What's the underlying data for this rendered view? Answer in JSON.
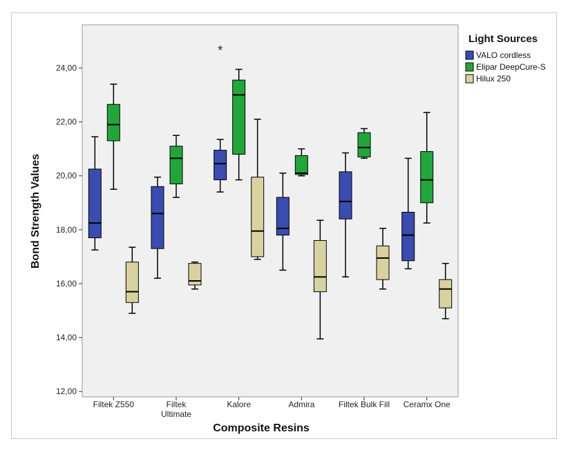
{
  "chart_data": {
    "type": "boxplot",
    "xlabel": "Composite Resins",
    "ylabel": "Bond Strength Values",
    "ylim": [
      11.8,
      25.6
    ],
    "yticks": [
      "12,00",
      "14,00",
      "16,00",
      "18,00",
      "20,00",
      "22,00",
      "24,00"
    ],
    "ytick_values": [
      12,
      14,
      16,
      18,
      20,
      22,
      24
    ],
    "categories": [
      [
        "Filtek Z550"
      ],
      [
        "Filtek",
        "Ultimate"
      ],
      [
        "Kalore"
      ],
      [
        "Admira"
      ],
      [
        "Filtek Bulk Fill"
      ],
      [
        "Ceramx One"
      ]
    ],
    "legend": {
      "title": "Light Sources",
      "position": "top-right"
    },
    "series": [
      {
        "name": "VALO cordless",
        "color": "#3b4cb0",
        "boxes": [
          {
            "min": 17.25,
            "q1": 17.7,
            "median": 18.25,
            "q3": 20.25,
            "max": 21.45
          },
          {
            "min": 16.2,
            "q1": 17.3,
            "median": 18.6,
            "q3": 19.6,
            "max": 19.95
          },
          {
            "min": 19.4,
            "q1": 19.85,
            "median": 20.45,
            "q3": 20.95,
            "max": 21.35,
            "outliers": [
              24.7
            ]
          },
          {
            "min": 16.5,
            "q1": 17.8,
            "median": 18.05,
            "q3": 19.2,
            "max": 20.1
          },
          {
            "min": 16.25,
            "q1": 18.4,
            "median": 19.05,
            "q3": 20.15,
            "max": 20.85
          },
          {
            "min": 16.55,
            "q1": 16.85,
            "median": 17.8,
            "q3": 18.65,
            "max": 20.65
          }
        ]
      },
      {
        "name": "Elipar DeepCure-S",
        "color": "#22a63b",
        "boxes": [
          {
            "min": 19.5,
            "q1": 21.3,
            "median": 21.9,
            "q3": 22.65,
            "max": 23.4
          },
          {
            "min": 19.2,
            "q1": 19.7,
            "median": 20.65,
            "q3": 21.1,
            "max": 21.5
          },
          {
            "min": 19.85,
            "q1": 20.8,
            "median": 23.0,
            "q3": 23.55,
            "max": 23.95
          },
          {
            "min": 20.0,
            "q1": 20.05,
            "median": 20.1,
            "q3": 20.75,
            "max": 21.0
          },
          {
            "min": 20.65,
            "q1": 20.7,
            "median": 21.05,
            "q3": 21.6,
            "max": 21.75
          },
          {
            "min": 18.25,
            "q1": 19.0,
            "median": 19.85,
            "q3": 20.9,
            "max": 22.35
          }
        ]
      },
      {
        "name": "Hilux 250",
        "color": "#d8d2a0",
        "boxes": [
          {
            "min": 14.9,
            "q1": 15.3,
            "median": 15.7,
            "q3": 16.8,
            "max": 17.35
          },
          {
            "min": 15.8,
            "q1": 15.95,
            "median": 16.1,
            "q3": 16.75,
            "max": 16.8
          },
          {
            "min": 16.9,
            "q1": 17.0,
            "median": 17.95,
            "q3": 19.95,
            "max": 22.1
          },
          {
            "min": 13.95,
            "q1": 15.7,
            "median": 16.25,
            "q3": 17.6,
            "max": 18.35
          },
          {
            "min": 15.8,
            "q1": 16.15,
            "median": 16.95,
            "q3": 17.4,
            "max": 18.05
          },
          {
            "min": 14.7,
            "q1": 15.1,
            "median": 15.8,
            "q3": 16.15,
            "max": 16.75
          }
        ]
      }
    ]
  }
}
